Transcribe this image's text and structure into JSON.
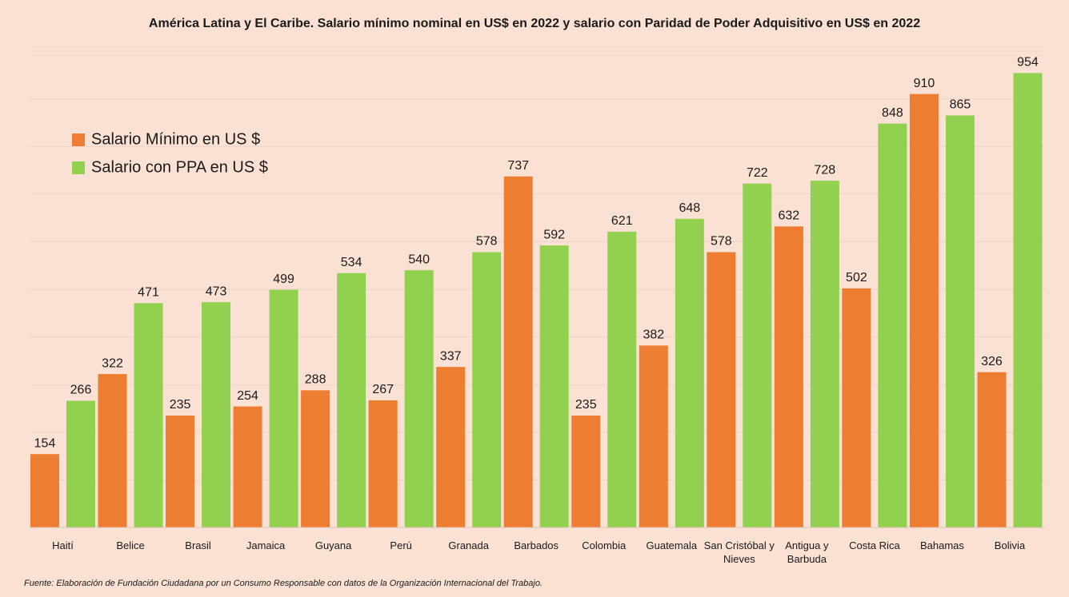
{
  "chart_data": {
    "type": "bar",
    "title": "América Latina y El Caribe. Salario mínimo nominal en US$ en 2022 y salario con Paridad de Poder Adquisitivo en US$ en 2022",
    "source": "Fuente: Elaboración de Fundación Ciudadana por un Consumo Responsable con datos de la Organización Internacional del Trabajo.",
    "categories": [
      "Haití",
      "Belice",
      "Brasil",
      "Jamaica",
      "Guyana",
      "Perú",
      "Granada",
      "Barbados",
      "Colombia",
      "Guatemala",
      "San Cristóbal y Nieves",
      "Antigua y Barbuda",
      "Costa Rica",
      "Bahamas",
      "Bolivia"
    ],
    "series": [
      {
        "name": "Salario Mínimo en US $",
        "color": "#ed7d31",
        "values": [
          154,
          322,
          235,
          254,
          288,
          267,
          337,
          737,
          235,
          382,
          578,
          632,
          502,
          910,
          326
        ]
      },
      {
        "name": "Salario con PPA en US $",
        "color": "#92d050",
        "values": [
          266,
          471,
          473,
          499,
          534,
          540,
          578,
          592,
          621,
          648,
          722,
          728,
          848,
          865,
          954
        ]
      }
    ],
    "ylim": [
      0,
      1000
    ],
    "yticks": [
      0,
      100,
      200,
      300,
      400,
      500,
      600,
      700,
      800,
      900,
      1000
    ],
    "grid": true,
    "legend_position": "upper left"
  }
}
